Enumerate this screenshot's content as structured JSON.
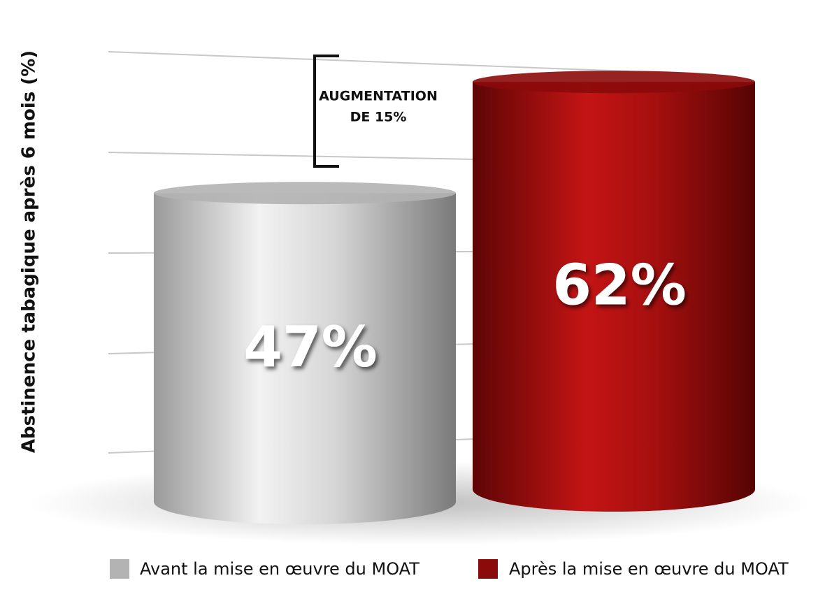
{
  "chart_data": {
    "type": "bar",
    "y_label": "Abstinence tabagique après 6 mois (%)",
    "annotation": [
      "AUGMENTATION",
      "DE 15%"
    ],
    "series": [
      {
        "name": "Avant la mise en œuvre du MOAT",
        "color": "#b3b3b3",
        "values": [
          47
        ],
        "value_labels": [
          "47%"
        ]
      },
      {
        "name": "Après la mise en œuvre du MOAT",
        "color": "#8b0a0a",
        "values": [
          62
        ],
        "value_labels": [
          "62%"
        ]
      }
    ],
    "legend": "bottom-right"
  }
}
